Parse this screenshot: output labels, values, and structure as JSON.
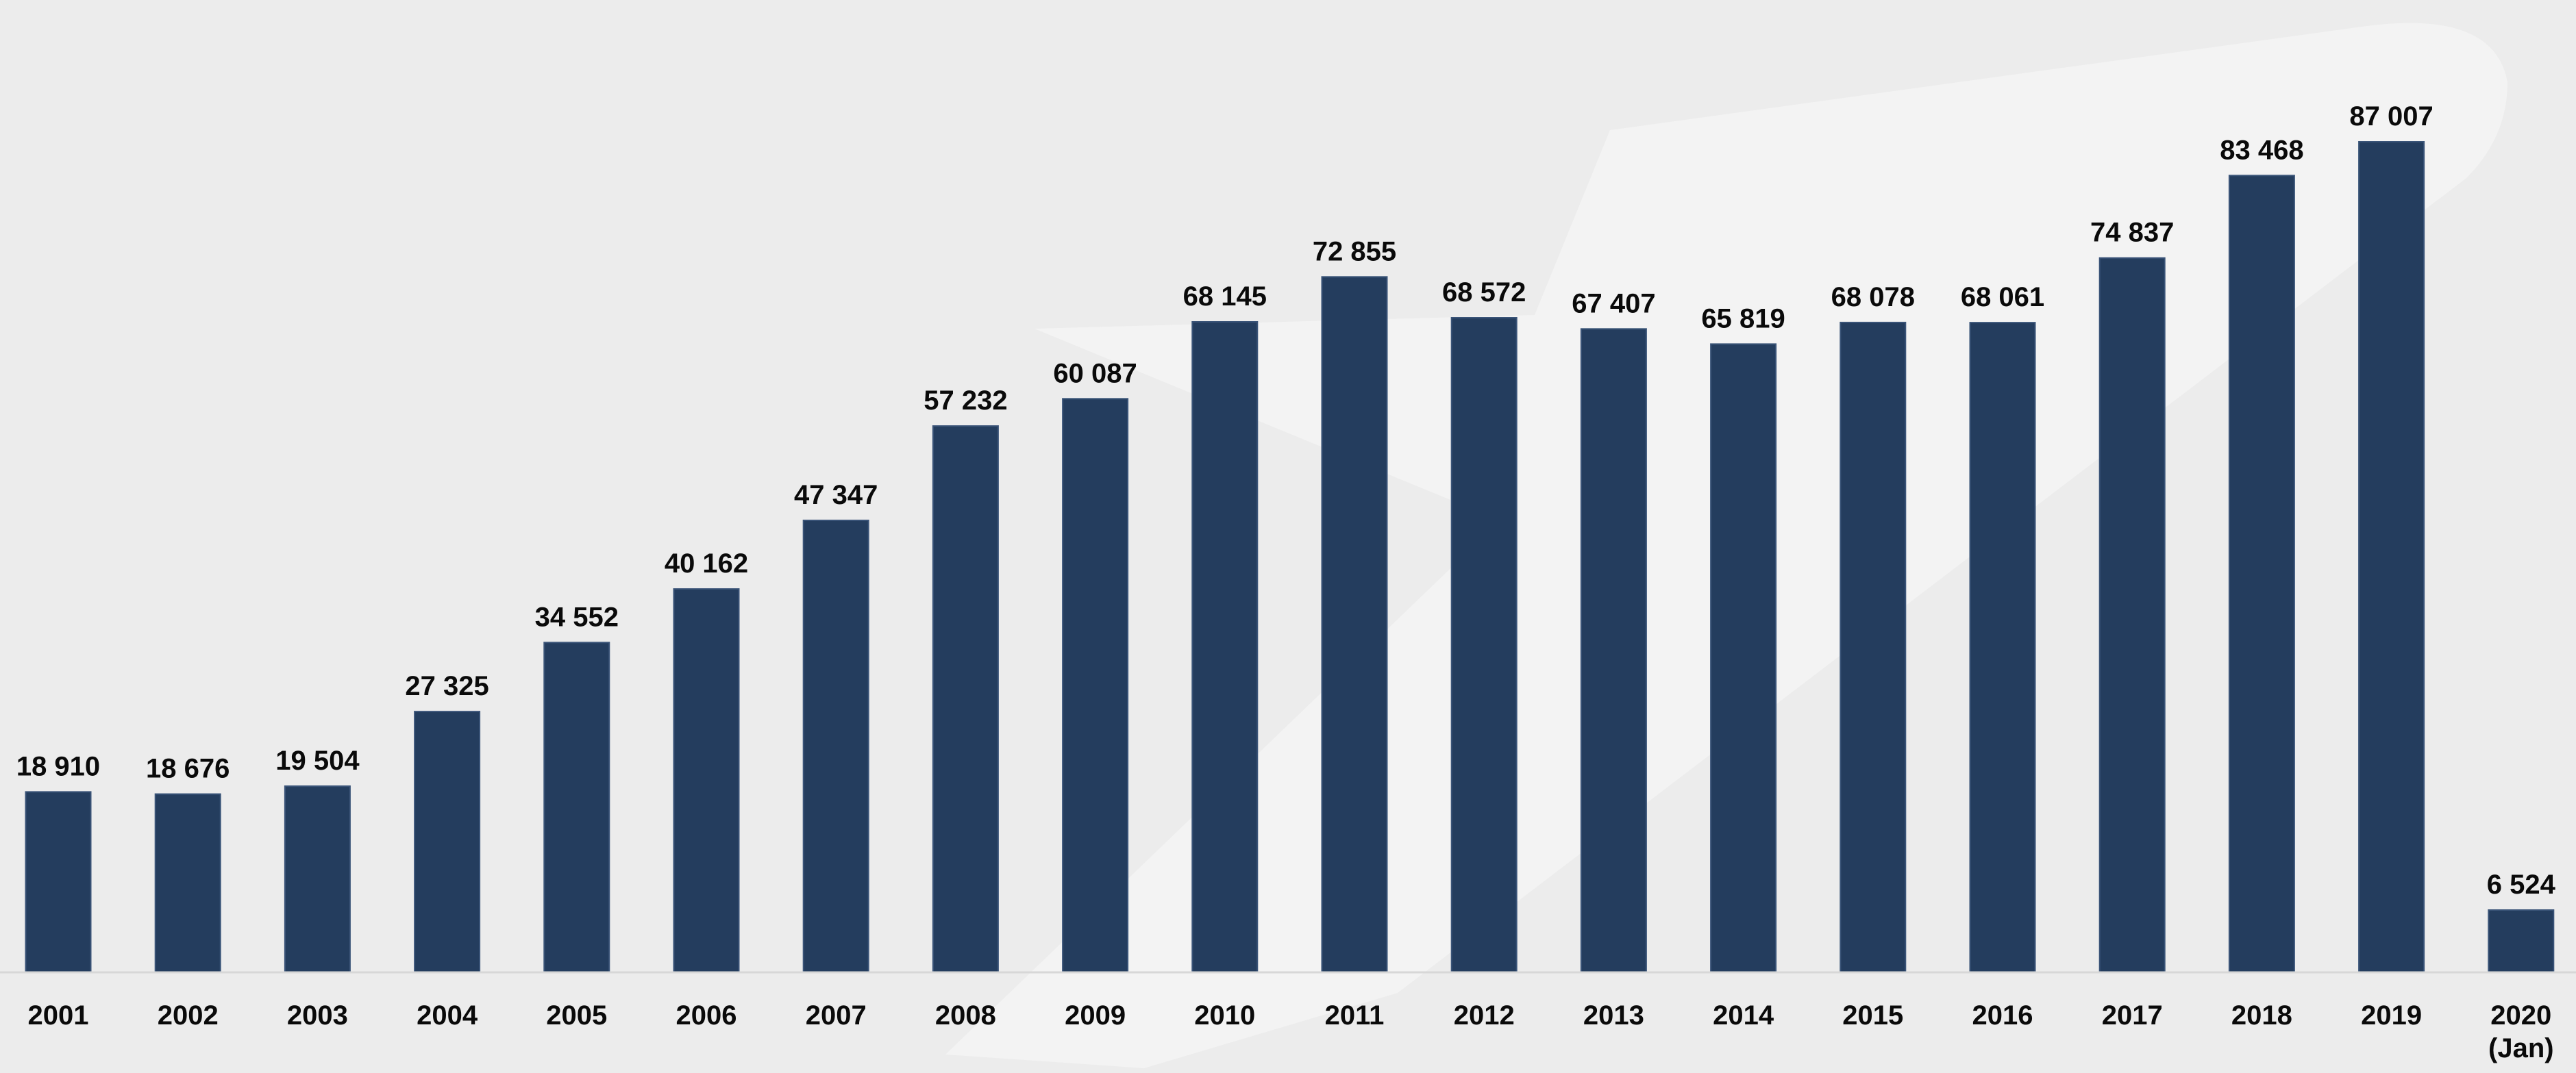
{
  "chart_data": {
    "type": "bar",
    "title": "",
    "xlabel": "",
    "ylabel": "",
    "categories": [
      [
        "2001"
      ],
      [
        "2002"
      ],
      [
        "2003"
      ],
      [
        "2004"
      ],
      [
        "2005"
      ],
      [
        "2006"
      ],
      [
        "2007"
      ],
      [
        "2008"
      ],
      [
        "2009"
      ],
      [
        "2010"
      ],
      [
        "2011"
      ],
      [
        "2012"
      ],
      [
        "2013"
      ],
      [
        "2014"
      ],
      [
        "2015"
      ],
      [
        "2016"
      ],
      [
        "2017"
      ],
      [
        "2018"
      ],
      [
        "2019"
      ],
      [
        "2020",
        "(Jan)"
      ]
    ],
    "values": [
      18910,
      18676,
      19504,
      27325,
      34552,
      40162,
      47347,
      57232,
      60087,
      68145,
      72855,
      68572,
      67407,
      65819,
      68078,
      68061,
      74837,
      83468,
      87007,
      6524
    ],
    "value_labels": [
      "18 910",
      "18 676",
      "19 504",
      "27 325",
      "34 552",
      "40 162",
      "47 347",
      "57 232",
      "60 087",
      "68 145",
      "72 855",
      "68 572",
      "67 407",
      "65 819",
      "68 078",
      "68 061",
      "74 837",
      "83 468",
      "87 007",
      "6 524"
    ],
    "ylim": [
      0,
      100000
    ],
    "grid": false,
    "legend": "none",
    "colors": {
      "bar": "#243d5e",
      "background": "#ececec"
    }
  }
}
